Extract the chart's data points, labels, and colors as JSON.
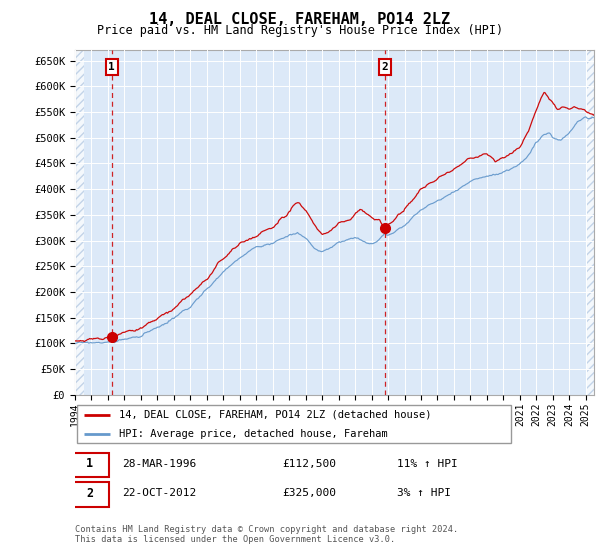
{
  "title": "14, DEAL CLOSE, FAREHAM, PO14 2LZ",
  "subtitle": "Price paid vs. HM Land Registry's House Price Index (HPI)",
  "legend_line1": "14, DEAL CLOSE, FAREHAM, PO14 2LZ (detached house)",
  "legend_line2": "HPI: Average price, detached house, Fareham",
  "transaction1_date": "28-MAR-1996",
  "transaction1_price": 112500,
  "transaction1_hpi": "11% ↑ HPI",
  "transaction2_date": "22-OCT-2012",
  "transaction2_price": 325000,
  "transaction2_hpi": "3% ↑ HPI",
  "footer": "Contains HM Land Registry data © Crown copyright and database right 2024.\nThis data is licensed under the Open Government Licence v3.0.",
  "ylim": [
    0,
    670000
  ],
  "yticks": [
    0,
    50000,
    100000,
    150000,
    200000,
    250000,
    300000,
    350000,
    400000,
    450000,
    500000,
    550000,
    600000,
    650000
  ],
  "background_color": "#dce9f8",
  "hatch_color": "#adc4e0",
  "red_line_color": "#cc0000",
  "blue_line_color": "#6699cc",
  "transaction1_year": 1996.23,
  "transaction2_year": 2012.8,
  "xmin": 1994,
  "xmax": 2025.5
}
